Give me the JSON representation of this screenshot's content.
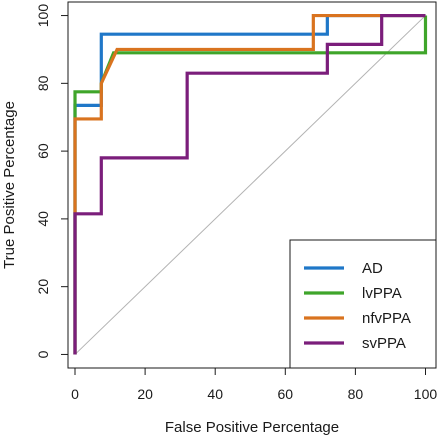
{
  "chart_data": {
    "type": "line",
    "title": "",
    "xlabel": "False Positive Percentage",
    "ylabel": "True Positive Percentage",
    "xlim": [
      -2,
      103
    ],
    "ylim": [
      -4,
      104
    ],
    "xticks": [
      0,
      20,
      40,
      60,
      80,
      100
    ],
    "yticks": [
      0,
      20,
      40,
      60,
      80,
      100
    ],
    "grid": false,
    "legend_position": "bottom-right",
    "reference_line": {
      "from": [
        0,
        0
      ],
      "to": [
        100,
        100
      ],
      "color": "#b3b3b3"
    },
    "series": [
      {
        "name": "AD",
        "color": "#1f77c8",
        "x": [
          0,
          0,
          0,
          7.5,
          7.5,
          7.5,
          72,
          72,
          100
        ],
        "y": [
          0,
          73,
          73.5,
          73.5,
          94.5,
          94.5,
          94.5,
          100,
          100
        ]
      },
      {
        "name": "lvPPA",
        "color": "#3fa52a",
        "x": [
          0,
          0,
          7.5,
          7.5,
          11,
          11,
          100,
          100
        ],
        "y": [
          0,
          77.5,
          77.5,
          80,
          89,
          89,
          89,
          100
        ]
      },
      {
        "name": "nfvPPA",
        "color": "#d9731f",
        "x": [
          0,
          0,
          7.5,
          7.5,
          12,
          68,
          68,
          100
        ],
        "y": [
          0,
          69.5,
          69.5,
          80,
          90,
          90,
          100,
          100
        ]
      },
      {
        "name": "svPPA",
        "color": "#7b1e7b",
        "x": [
          0,
          0,
          7.5,
          7.5,
          32,
          32,
          72,
          72,
          87.5,
          87.5,
          100
        ],
        "y": [
          0,
          41.5,
          41.5,
          58,
          58,
          83,
          83,
          91.5,
          91.5,
          100,
          100
        ]
      }
    ]
  }
}
